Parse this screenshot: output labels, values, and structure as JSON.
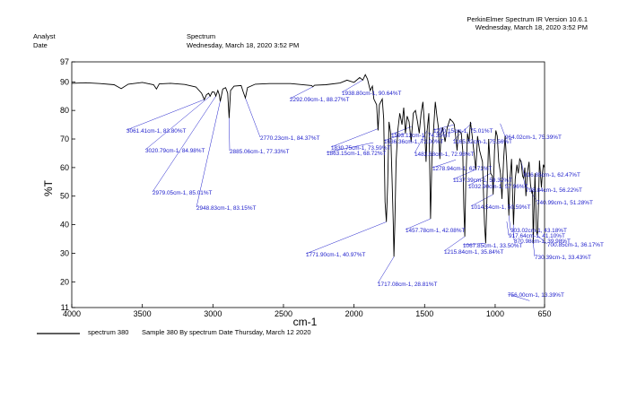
{
  "header": {
    "analyst_label": "Analyst",
    "date_label": "Date",
    "spectrum_label": "Spectrum",
    "spectrum_date": "Wednesday, March 18, 2020 3:52 PM",
    "software": "PerkinElmer Spectrum IR Version 10.6.1",
    "software_date": "Wednesday, March 18, 2020 3:52 PM"
  },
  "legend": {
    "series_label": "spectrum 380",
    "description": "Sample 380 By spectrum Date Thursday, March 12 2020"
  },
  "colors": {
    "trace": "#000000",
    "annotation": "#2020cc"
  },
  "chart_data": {
    "type": "line",
    "xlabel": "cm-1",
    "ylabel": "%T",
    "xlim": [
      4000,
      650
    ],
    "ylim": [
      11,
      97
    ],
    "x_reversed": true,
    "grid": false,
    "x_ticks": [
      "4000",
      "3500",
      "3000",
      "2500",
      "2000",
      "1500",
      "1000",
      "650"
    ],
    "y_ticks": [
      "11",
      "20",
      "30",
      "40",
      "50",
      "60",
      "70",
      "80",
      "90",
      "97"
    ],
    "x_tick_values": [
      4000,
      3500,
      3000,
      2500,
      2000,
      1500,
      1000,
      650
    ],
    "y_tick_values": [
      11,
      20,
      30,
      40,
      50,
      60,
      70,
      80,
      90,
      97
    ],
    "series": [
      {
        "name": "spectrum 380",
        "points": [
          [
            4000,
            89.5
          ],
          [
            3900,
            89.7
          ],
          [
            3800,
            89.4
          ],
          [
            3700,
            89.0
          ],
          [
            3650,
            87.6
          ],
          [
            3600,
            89.2
          ],
          [
            3500,
            89.8
          ],
          [
            3420,
            89.0
          ],
          [
            3400,
            87.5
          ],
          [
            3380,
            89.3
          ],
          [
            3300,
            89.5
          ],
          [
            3200,
            89.1
          ],
          [
            3120,
            88.2
          ],
          [
            3080,
            86.0
          ],
          [
            3061,
            83.8
          ],
          [
            3045,
            85.5
          ],
          [
            3030,
            86.0
          ],
          [
            3020,
            84.98
          ],
          [
            3005,
            86.5
          ],
          [
            2990,
            86.4
          ],
          [
            2979,
            85.01
          ],
          [
            2965,
            87.0
          ],
          [
            2955,
            85.5
          ],
          [
            2948,
            83.15
          ],
          [
            2930,
            87.5
          ],
          [
            2910,
            88.0
          ],
          [
            2895,
            86.0
          ],
          [
            2885,
            77.33
          ],
          [
            2875,
            87.0
          ],
          [
            2850,
            88.5
          ],
          [
            2800,
            88.7
          ],
          [
            2785,
            86.5
          ],
          [
            2770,
            84.37
          ],
          [
            2755,
            88.0
          ],
          [
            2700,
            89.2
          ],
          [
            2600,
            89.4
          ],
          [
            2450,
            89.4
          ],
          [
            2300,
            88.7
          ],
          [
            2292,
            88.27
          ],
          [
            2280,
            88.8
          ],
          [
            2200,
            89.0
          ],
          [
            2100,
            89.6
          ],
          [
            2050,
            90.6
          ],
          [
            2000,
            89.8
          ],
          [
            1960,
            91.5
          ],
          [
            1938,
            90.64
          ],
          [
            1920,
            92.5
          ],
          [
            1905,
            91.0
          ],
          [
            1885,
            87.0
          ],
          [
            1870,
            88.5
          ],
          [
            1860,
            84.0
          ],
          [
            1840,
            82.0
          ],
          [
            1830,
            73.0
          ],
          [
            1820,
            82.0
          ],
          [
            1800,
            84.0
          ],
          [
            1790,
            77.0
          ],
          [
            1780,
            48.0
          ],
          [
            1771,
            40.97
          ],
          [
            1762,
            54.0
          ],
          [
            1752,
            76.0
          ],
          [
            1740,
            72.0
          ],
          [
            1730,
            55.0
          ],
          [
            1722,
            40.0
          ],
          [
            1717,
            28.81
          ],
          [
            1711,
            40.0
          ],
          [
            1702,
            62.0
          ],
          [
            1690,
            73.0
          ],
          [
            1676,
            79.0
          ],
          [
            1660,
            75.0
          ],
          [
            1648,
            81.0
          ],
          [
            1636,
            72.0
          ],
          [
            1624,
            78.0
          ],
          [
            1610,
            76.0
          ],
          [
            1595,
            69.0
          ],
          [
            1580,
            79.0
          ],
          [
            1565,
            80.0
          ],
          [
            1550,
            76.0
          ],
          [
            1538,
            72.0
          ],
          [
            1525,
            79.0
          ],
          [
            1512,
            83.0
          ],
          [
            1500,
            74.0
          ],
          [
            1490,
            62.0
          ],
          [
            1482,
            73.0
          ],
          [
            1470,
            79.0
          ],
          [
            1458,
            42.08
          ],
          [
            1448,
            64.0
          ],
          [
            1436,
            74.0
          ],
          [
            1424,
            83.0
          ],
          [
            1413,
            78.0
          ],
          [
            1402,
            74.0
          ],
          [
            1392,
            63.0
          ],
          [
            1383,
            72.0
          ],
          [
            1372,
            74.0
          ],
          [
            1355,
            69.0
          ],
          [
            1340,
            74.0
          ],
          [
            1320,
            77.0
          ],
          [
            1300,
            76.0
          ],
          [
            1290,
            75.2
          ],
          [
            1280,
            71.0
          ],
          [
            1270,
            66.0
          ],
          [
            1260,
            73.0
          ],
          [
            1240,
            72.0
          ],
          [
            1230,
            66.0
          ],
          [
            1222,
            46.0
          ],
          [
            1215,
            35.84
          ],
          [
            1208,
            55.0
          ],
          [
            1196,
            72.0
          ],
          [
            1185,
            69.0
          ],
          [
            1175,
            76.0
          ],
          [
            1165,
            72.0
          ],
          [
            1137,
            59.32
          ],
          [
            1125,
            71.0
          ],
          [
            1110,
            66.0
          ],
          [
            1090,
            62.0
          ],
          [
            1075,
            40.0
          ],
          [
            1067,
            33.5
          ],
          [
            1057,
            52.0
          ],
          [
            1046,
            70.0
          ],
          [
            1032,
            57.96
          ],
          [
            1020,
            57.0
          ],
          [
            1014,
            50.59
          ],
          [
            1005,
            66.0
          ],
          [
            995,
            73.0
          ],
          [
            985,
            71.0
          ],
          [
            975,
            62.0
          ],
          [
            962,
            58.0
          ],
          [
            952,
            49.0
          ],
          [
            940,
            63.0
          ],
          [
            930,
            71.0
          ],
          [
            918,
            62.0
          ],
          [
            903,
            43.18
          ],
          [
            895,
            56.0
          ],
          [
            884,
            63.0
          ],
          [
            870,
            39.98
          ],
          [
            858,
            56.0
          ],
          [
            846,
            61.0
          ],
          [
            836,
            58.0
          ],
          [
            826,
            63.0
          ],
          [
            816,
            62.0
          ],
          [
            806,
            57.0
          ],
          [
            798,
            56.22
          ],
          [
            790,
            60.0
          ],
          [
            782,
            50.0
          ],
          [
            772,
            58.0
          ],
          [
            760,
            62.0
          ],
          [
            750,
            54.0
          ],
          [
            740,
            51.28
          ],
          [
            735,
            52.0
          ],
          [
            730,
            33.43
          ],
          [
            725,
            44.0
          ],
          [
            718,
            58.0
          ],
          [
            708,
            38.0
          ],
          [
            700,
            36.17
          ],
          [
            693,
            47.0
          ],
          [
            686,
            62.47
          ],
          [
            679,
            58.0
          ],
          [
            672,
            53.0
          ],
          [
            665,
            58.0
          ],
          [
            658,
            61.0
          ],
          [
            650,
            60.0
          ]
        ]
      }
    ],
    "annotations": [
      {
        "label": "3061.41cm-1, 83.80%T",
        "x": 3061.41,
        "y": 83.8
      },
      {
        "label": "3020.79cm-1, 84.98%T",
        "x": 3020.79,
        "y": 84.98
      },
      {
        "label": "2979.05cm-1, 85.01%T",
        "x": 2979.05,
        "y": 85.01
      },
      {
        "label": "2948.83cm-1, 83.15%T",
        "x": 2948.83,
        "y": 83.15
      },
      {
        "label": "2885.06cm-1, 77.33%T",
        "x": 2885.06,
        "y": 77.33
      },
      {
        "label": "2770.23cm-1, 84.37%T",
        "x": 2770.23,
        "y": 84.37
      },
      {
        "label": "2292.09cm-1, 88.27%T",
        "x": 2292.09,
        "y": 88.27
      },
      {
        "label": "1938.80cm-1, 90.64%T",
        "x": 1938.8,
        "y": 90.64
      },
      {
        "label": "1830.75cm-1, 73.59%T",
        "x": 1830.75,
        "y": 73.59
      },
      {
        "label": "1863.15cm-1, 68.72%T",
        "x": 1863.15,
        "y": 68.72
      },
      {
        "label": "1771.90cm-1, 40.97%T",
        "x": 1771.9,
        "y": 40.97
      },
      {
        "label": "1717.08cm-1, 28.81%T",
        "x": 1717.08,
        "y": 28.81
      },
      {
        "label": "1593.12cm-1, 74.35%T",
        "x": 1593.12,
        "y": 74.35
      },
      {
        "label": "1636.36cm-1, 72.00%T",
        "x": 1636.36,
        "y": 72.0
      },
      {
        "label": "1482.68cm-1, 72.98%T",
        "x": 1482.68,
        "y": 72.98
      },
      {
        "label": "1457.78cm-1, 42.08%T",
        "x": 1457.78,
        "y": 42.08
      },
      {
        "label": "1290.15cm-1, 75.01%T",
        "x": 1290.15,
        "y": 75.01
      },
      {
        "label": "1165.52cm-1, 75.56%T",
        "x": 1165.52,
        "y": 75.56
      },
      {
        "label": "964.02cm-1, 75.39%T",
        "x": 964.02,
        "y": 75.39
      },
      {
        "label": "1278.94cm-1, 62.71%T",
        "x": 1278.94,
        "y": 62.71
      },
      {
        "label": "1137.39cm-1, 59.32%T",
        "x": 1137.39,
        "y": 59.32
      },
      {
        "label": "1032.90cm-1, 57.96%T",
        "x": 1032.9,
        "y": 57.96
      },
      {
        "label": "816.85cm-1, 62.47%T",
        "x": 816.85,
        "y": 62.47
      },
      {
        "label": "798.84cm-1, 56.22%T",
        "x": 798.84,
        "y": 56.22
      },
      {
        "label": "740.99cm-1, 51.28%T",
        "x": 740.99,
        "y": 51.28
      },
      {
        "label": "1014.54cm-1, 50.59%T",
        "x": 1014.54,
        "y": 50.59
      },
      {
        "label": "903.02cm-1, 43.18%T",
        "x": 903.02,
        "y": 43.18
      },
      {
        "label": "917.64cm-1, 41.10%T",
        "x": 917.64,
        "y": 41.1
      },
      {
        "label": "870.98cm-1, 39.98%T",
        "x": 870.98,
        "y": 39.98
      },
      {
        "label": "1067.85cm-1, 33.50%T",
        "x": 1067.85,
        "y": 33.5
      },
      {
        "label": "1215.84cm-1, 35.84%T",
        "x": 1215.84,
        "y": 35.84
      },
      {
        "label": "700.85cm-1, 36.17%T",
        "x": 700.85,
        "y": 36.17
      },
      {
        "label": "730.39cm-1, 33.43%T",
        "x": 730.39,
        "y": 33.43
      },
      {
        "label": "756.00cm-1, 13.39%T",
        "x": 756.0,
        "y": 13.39
      }
    ]
  }
}
